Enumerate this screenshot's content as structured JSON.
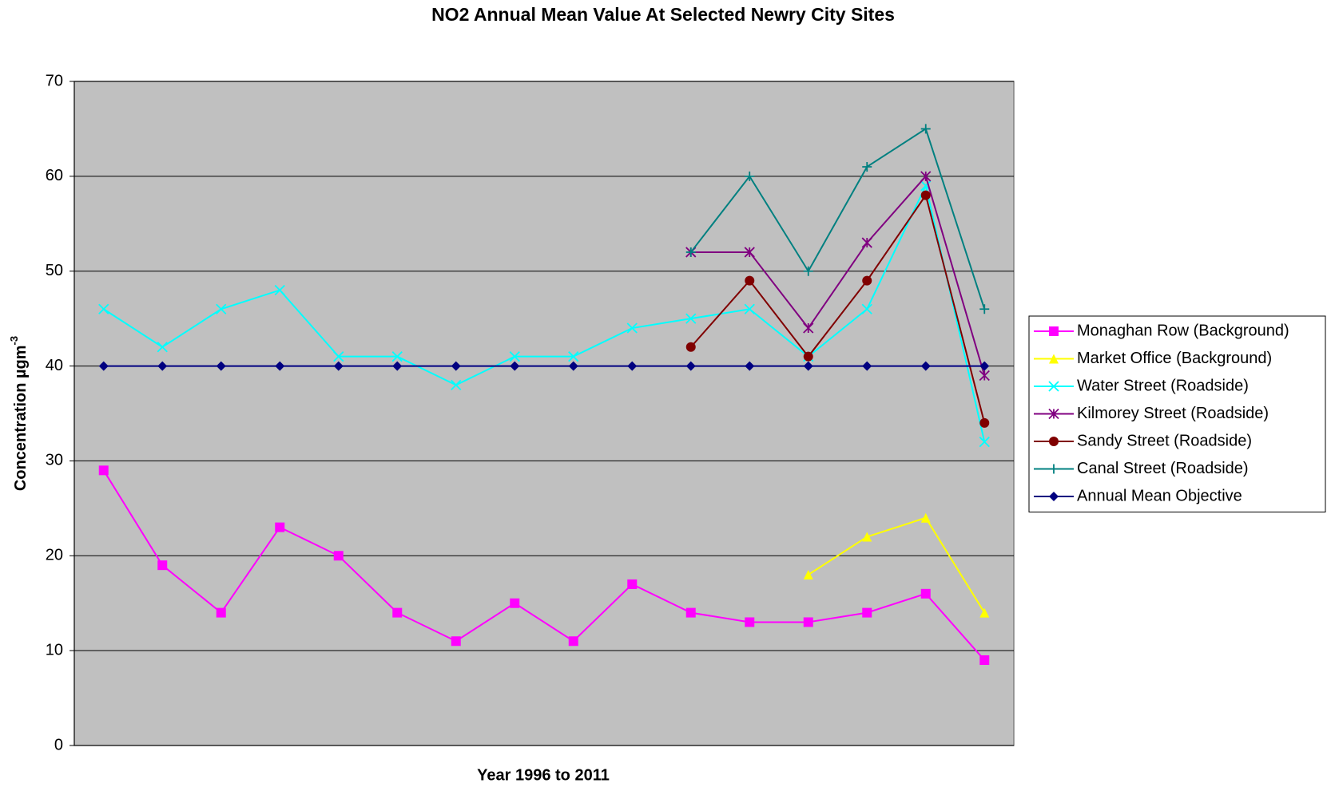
{
  "chart_data": {
    "type": "line",
    "title": "NO2 Annual Mean Value At Selected Newry City Sites",
    "xlabel": "Year 1996 to 2011",
    "ylabel": "Concentration µgm",
    "ylabel_superscript": "-3",
    "categories": [
      null,
      null,
      null,
      null,
      null,
      null,
      null,
      null,
      null,
      null,
      null,
      null,
      null,
      null,
      null,
      null
    ],
    "series": [
      {
        "name": "Monaghan Row (Background)",
        "color": "#ff00ff",
        "marker": "square",
        "values": [
          29,
          19,
          14,
          23,
          20,
          14,
          11,
          15,
          11,
          17,
          14,
          13,
          13,
          14,
          16,
          9
        ]
      },
      {
        "name": "Market Office (Background)",
        "color": "#ffff00",
        "marker": "triangle",
        "values": [
          null,
          null,
          null,
          null,
          null,
          null,
          null,
          null,
          null,
          null,
          null,
          null,
          18,
          22,
          24,
          14
        ]
      },
      {
        "name": "Water Street (Roadside)",
        "color": "#00ffff",
        "marker": "x",
        "values": [
          46,
          42,
          46,
          48,
          41,
          41,
          38,
          41,
          41,
          44,
          45,
          46,
          41,
          46,
          59,
          32
        ]
      },
      {
        "name": "Kilmorey Street (Roadside)",
        "color": "#800080",
        "marker": "asterisk",
        "values": [
          null,
          null,
          null,
          null,
          null,
          null,
          null,
          null,
          null,
          null,
          52,
          52,
          44,
          53,
          60,
          39
        ]
      },
      {
        "name": "Sandy Street (Roadside)",
        "color": "#800000",
        "marker": "circle",
        "values": [
          null,
          null,
          null,
          null,
          null,
          null,
          null,
          null,
          null,
          null,
          42,
          49,
          41,
          49,
          58,
          34
        ]
      },
      {
        "name": "Canal Street (Roadside)",
        "color": "#008080",
        "marker": "plus",
        "values": [
          null,
          null,
          null,
          null,
          null,
          null,
          null,
          null,
          null,
          null,
          52,
          60,
          50,
          61,
          65,
          46
        ]
      },
      {
        "name": "Annual Mean Objective",
        "color": "#000080",
        "marker": "diamond",
        "values": [
          40,
          40,
          40,
          40,
          40,
          40,
          40,
          40,
          40,
          40,
          40,
          40,
          40,
          40,
          40,
          40
        ]
      }
    ],
    "ylim": [
      0,
      70
    ],
    "yticks": [
      0,
      10,
      20,
      30,
      40,
      50,
      60,
      70
    ],
    "grid": true,
    "legend": "right"
  }
}
